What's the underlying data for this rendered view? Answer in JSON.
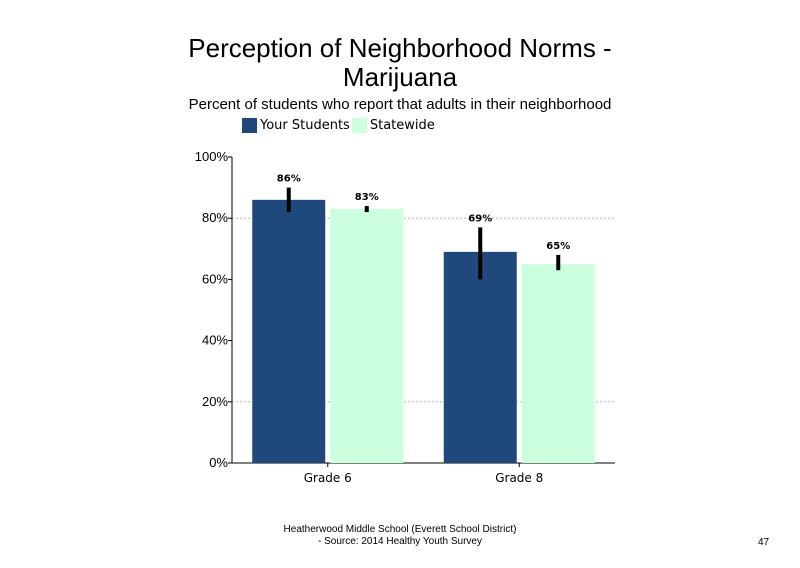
{
  "title_line1": "Perception of Neighborhood Norms -",
  "title_line2": "Marijuana",
  "subtitle": "Percent of students who report that adults in their neighborhood",
  "footer": {
    "line1": "Heatherwood Middle School (Everett School District)",
    "line2": "- Source: 2014 Healthy Youth Survey",
    "page_number": "47"
  },
  "colors": {
    "your_students": "#1F497D",
    "statewide": "#CCFFDD",
    "error_bar": "#000000",
    "grid": "#BBBBBB"
  },
  "chart_data": {
    "type": "bar",
    "categories": [
      "Grade 6",
      "Grade 8"
    ],
    "series": [
      {
        "name": "Your Students",
        "values": [
          86,
          69
        ],
        "labels": [
          "86%",
          "69%"
        ],
        "error_low": [
          82,
          60
        ],
        "error_high": [
          90,
          77
        ]
      },
      {
        "name": "Statewide",
        "values": [
          83,
          65
        ],
        "labels": [
          "83%",
          "65%"
        ],
        "error_low": [
          82,
          63
        ],
        "error_high": [
          84,
          68
        ]
      }
    ],
    "ylim": [
      0,
      100
    ],
    "yticks": [
      0,
      20,
      40,
      60,
      80,
      100
    ],
    "ytick_labels": [
      "0%",
      "20%",
      "40%",
      "60%",
      "80%",
      "100%"
    ],
    "gridlines": [
      20,
      80
    ],
    "legend_position": "top-left",
    "xlabel": "",
    "ylabel": ""
  }
}
